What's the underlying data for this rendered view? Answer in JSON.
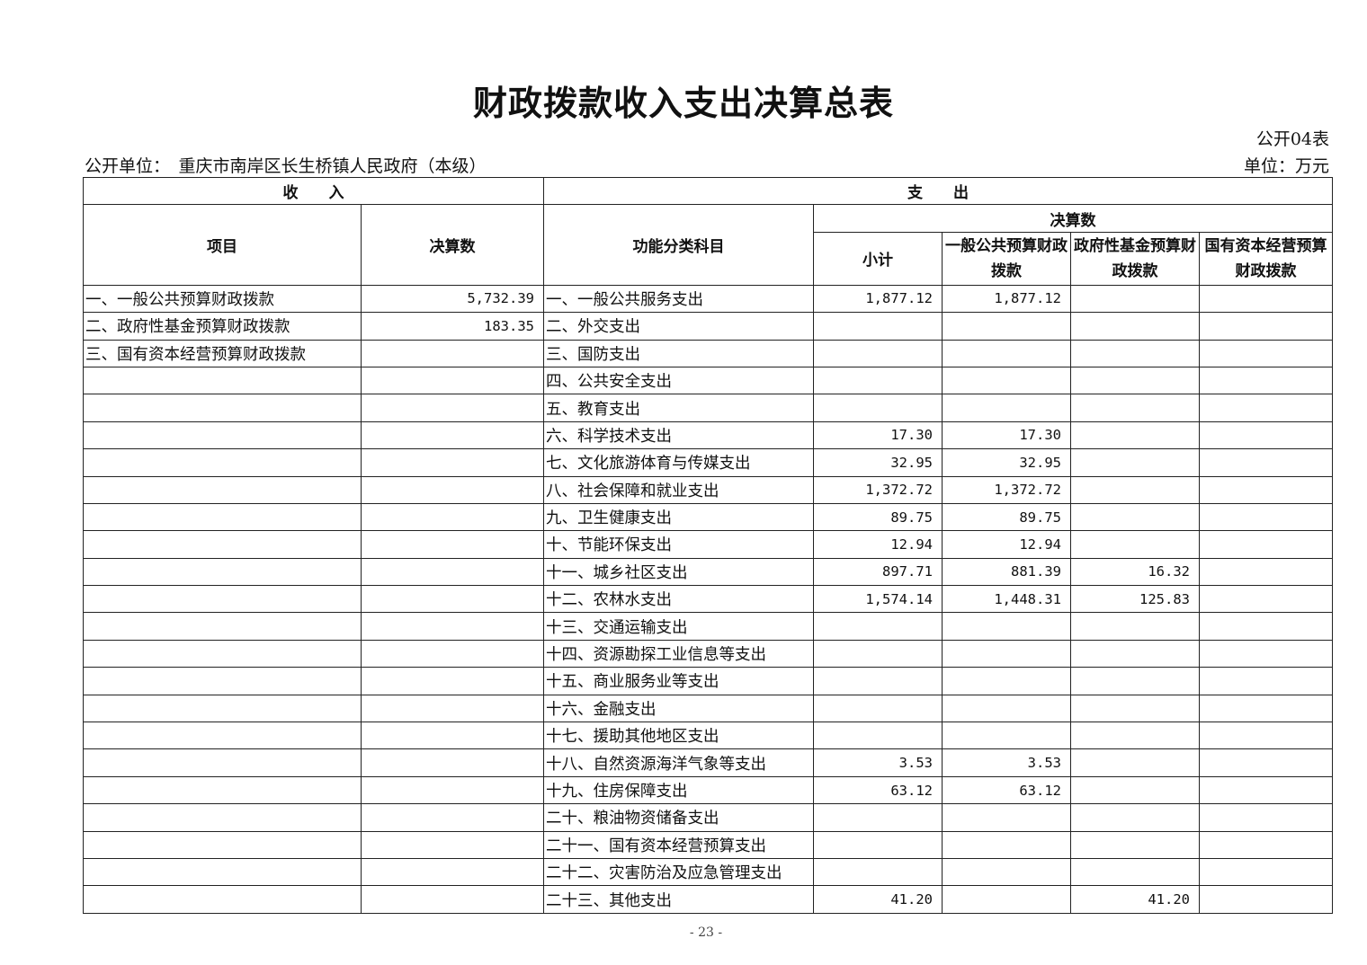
{
  "title": "财政拨款收入支出决算总表",
  "table_no": "公开04表",
  "unit_label": "公开单位：　重庆市南岸区长生桥镇人民政府（本级）",
  "currency_unit": "单位：万元",
  "headers": {
    "income": "收　　入",
    "expense": "支　　出",
    "item": "项目",
    "income_amount": "决算数",
    "function_class": "功能分类科目",
    "final_amount": "决算数",
    "subtotal": "小计",
    "general_public": "一般公共预算财政拨款",
    "gov_fund": "政府性基金预算财政拨款",
    "state_capital": "国有资本经营预算财政拨款"
  },
  "income_rows": [
    {
      "item": "一、一般公共预算财政拨款",
      "amount": "5,732.39"
    },
    {
      "item": "二、政府性基金预算财政拨款",
      "amount": "183.35"
    },
    {
      "item": "三、国有资本经营预算财政拨款",
      "amount": ""
    }
  ],
  "expense_rows": [
    {
      "name": "一、一般公共服务支出",
      "subtotal": "1,877.12",
      "general": "1,877.12",
      "fund": "",
      "capital": ""
    },
    {
      "name": "二、外交支出",
      "subtotal": "",
      "general": "",
      "fund": "",
      "capital": ""
    },
    {
      "name": "三、国防支出",
      "subtotal": "",
      "general": "",
      "fund": "",
      "capital": ""
    },
    {
      "name": "四、公共安全支出",
      "subtotal": "",
      "general": "",
      "fund": "",
      "capital": ""
    },
    {
      "name": "五、教育支出",
      "subtotal": "",
      "general": "",
      "fund": "",
      "capital": ""
    },
    {
      "name": "六、科学技术支出",
      "subtotal": "17.30",
      "general": "17.30",
      "fund": "",
      "capital": ""
    },
    {
      "name": "七、文化旅游体育与传媒支出",
      "subtotal": "32.95",
      "general": "32.95",
      "fund": "",
      "capital": ""
    },
    {
      "name": "八、社会保障和就业支出",
      "subtotal": "1,372.72",
      "general": "1,372.72",
      "fund": "",
      "capital": ""
    },
    {
      "name": "九、卫生健康支出",
      "subtotal": "89.75",
      "general": "89.75",
      "fund": "",
      "capital": ""
    },
    {
      "name": "十、节能环保支出",
      "subtotal": "12.94",
      "general": "12.94",
      "fund": "",
      "capital": ""
    },
    {
      "name": "十一、城乡社区支出",
      "subtotal": "897.71",
      "general": "881.39",
      "fund": "16.32",
      "capital": ""
    },
    {
      "name": "十二、农林水支出",
      "subtotal": "1,574.14",
      "general": "1,448.31",
      "fund": "125.83",
      "capital": ""
    },
    {
      "name": "十三、交通运输支出",
      "subtotal": "",
      "general": "",
      "fund": "",
      "capital": ""
    },
    {
      "name": "十四、资源勘探工业信息等支出",
      "subtotal": "",
      "general": "",
      "fund": "",
      "capital": ""
    },
    {
      "name": "十五、商业服务业等支出",
      "subtotal": "",
      "general": "",
      "fund": "",
      "capital": ""
    },
    {
      "name": "十六、金融支出",
      "subtotal": "",
      "general": "",
      "fund": "",
      "capital": ""
    },
    {
      "name": "十七、援助其他地区支出",
      "subtotal": "",
      "general": "",
      "fund": "",
      "capital": ""
    },
    {
      "name": "十八、自然资源海洋气象等支出",
      "subtotal": "3.53",
      "general": "3.53",
      "fund": "",
      "capital": ""
    },
    {
      "name": "十九、住房保障支出",
      "subtotal": "63.12",
      "general": "63.12",
      "fund": "",
      "capital": ""
    },
    {
      "name": "二十、粮油物资储备支出",
      "subtotal": "",
      "general": "",
      "fund": "",
      "capital": ""
    },
    {
      "name": "二十一、国有资本经营预算支出",
      "subtotal": "",
      "general": "",
      "fund": "",
      "capital": ""
    },
    {
      "name": "二十二、灾害防治及应急管理支出",
      "subtotal": "",
      "general": "",
      "fund": "",
      "capital": ""
    },
    {
      "name": "二十三、其他支出",
      "subtotal": "41.20",
      "general": "",
      "fund": "41.20",
      "capital": ""
    }
  ],
  "page_number": "- 23 -"
}
